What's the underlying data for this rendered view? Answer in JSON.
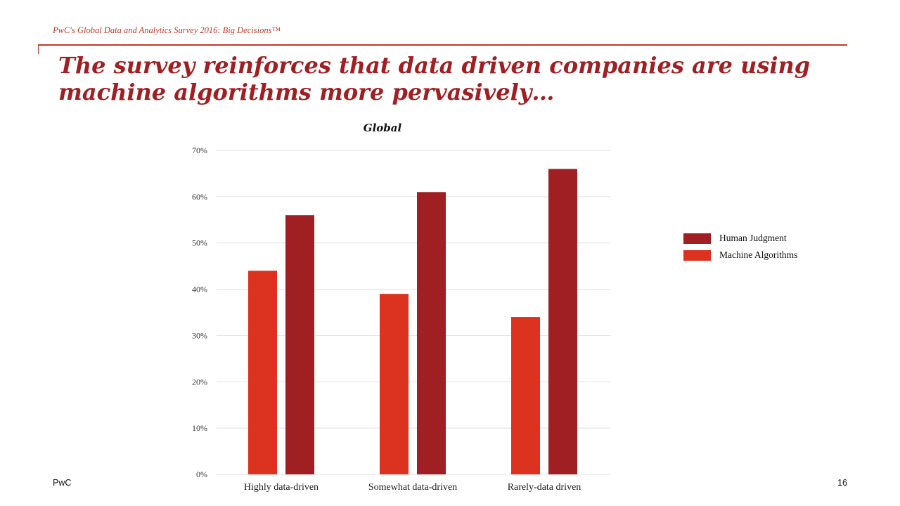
{
  "header": {
    "survey_note": "PwC's Global Data and Analytics Survey 2016: Big Decisions™",
    "title": "The survey reinforces that data driven companies are using machine algorithms more pervasively…"
  },
  "footer": {
    "brand": "PwC",
    "page_number": "16"
  },
  "colors": {
    "accent": "#c0392b",
    "title": "#a01f22",
    "human": "#9f1f22",
    "machine": "#dc3320",
    "grid": "#e1e1e1"
  },
  "chart_data": {
    "type": "bar",
    "title": "Global",
    "xlabel": "",
    "ylabel": "",
    "categories": [
      "Highly data-driven",
      "Somewhat data-driven",
      "Rarely-data driven"
    ],
    "series": [
      {
        "name": "Machine Algorithms",
        "color": "#dc3320",
        "values": [
          44,
          39,
          34
        ]
      },
      {
        "name": "Human Judgment",
        "color": "#9f1f22",
        "values": [
          56,
          61,
          66
        ]
      }
    ],
    "ylim": [
      0,
      70
    ],
    "yticks": [
      0,
      10,
      20,
      30,
      40,
      50,
      60,
      70
    ],
    "ytick_suffix": "%",
    "grid": true,
    "legend": {
      "placement": "right",
      "entries": [
        {
          "label": "Human Judgment",
          "color": "#9f1f22"
        },
        {
          "label": "Machine Algorithms",
          "color": "#dc3320"
        }
      ]
    }
  }
}
